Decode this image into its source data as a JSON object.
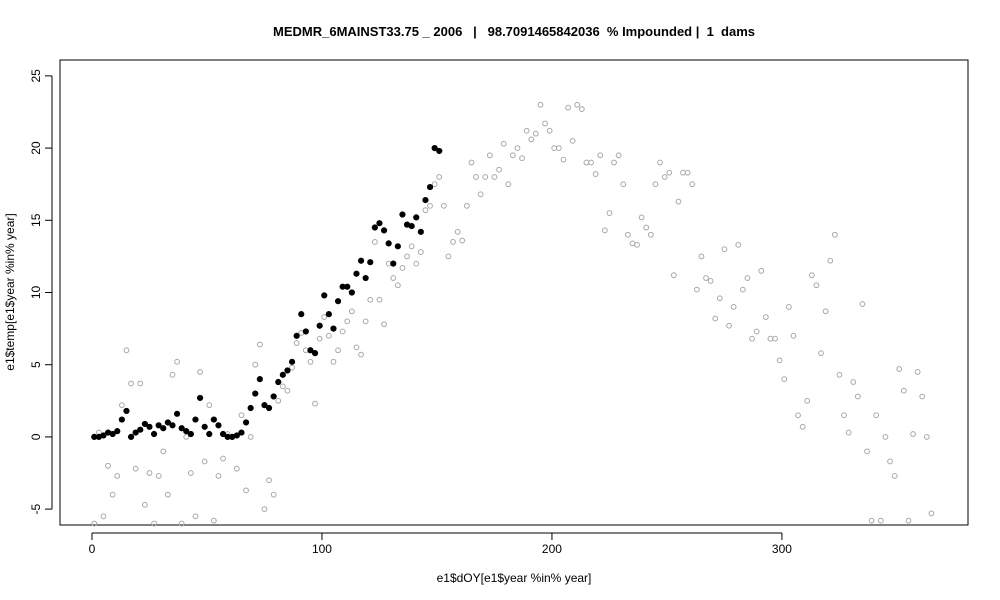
{
  "chart_data": {
    "type": "scatter",
    "title": "MEDMR_6MAINST33.75 _ 2006   |   98.7091465842036  % Impounded |  1  dams",
    "x_label": "e1$dOY[e1$year %in% year]",
    "y_label": "e1$temp[e1$year %in% year]",
    "xlim": [
      -13.9,
      380.9
    ],
    "ylim": [
      -6.1,
      26.1
    ],
    "xticks": [
      0,
      100,
      200,
      300
    ],
    "yticks": [
      -5,
      0,
      5,
      10,
      15,
      20,
      25
    ],
    "series": [
      {
        "color": "#a8a8a8",
        "filled": false,
        "x": [
          1,
          3,
          5,
          7,
          9,
          11,
          13,
          15,
          17,
          19,
          21,
          23,
          25,
          27,
          29,
          31,
          33,
          35,
          37,
          39,
          41,
          43,
          45,
          47,
          49,
          51,
          53,
          55,
          57,
          59,
          61,
          63,
          65,
          67,
          69,
          71,
          73,
          75,
          77,
          79,
          81,
          83,
          85,
          87,
          89,
          91,
          93,
          95,
          97,
          99,
          101,
          103,
          105,
          107,
          109,
          111,
          113,
          115,
          117,
          119,
          121,
          123,
          125,
          127,
          129,
          131,
          133,
          135,
          137,
          139,
          141,
          143,
          145,
          147,
          149,
          151,
          153,
          155,
          157,
          159,
          161,
          163,
          165,
          167,
          169,
          171,
          173,
          175,
          177,
          179,
          181,
          183,
          185,
          187,
          189,
          191,
          193,
          195,
          197,
          199,
          201,
          203,
          205,
          207,
          209,
          211,
          213,
          215,
          217,
          219,
          221,
          223,
          225,
          227,
          229,
          231,
          233,
          235,
          237,
          239,
          241,
          243,
          245,
          247,
          249,
          251,
          253,
          255,
          257,
          259,
          261,
          263,
          265,
          267,
          269,
          271,
          273,
          275,
          277,
          279,
          281,
          283,
          285,
          287,
          289,
          291,
          293,
          295,
          297,
          299,
          301,
          303,
          305,
          307,
          309,
          311,
          313,
          315,
          317,
          319,
          321,
          323,
          325,
          327,
          329,
          331,
          333,
          335,
          337,
          339,
          341,
          343,
          345,
          347,
          349,
          351,
          353,
          355,
          357,
          359,
          361,
          363,
          365
        ],
        "values": [
          -6,
          0.3,
          -5.5,
          -2,
          -4,
          -2.7,
          2.2,
          6,
          3.7,
          -2.2,
          3.7,
          -4.7,
          -2.5,
          -6,
          -2.7,
          -1,
          -4,
          4.3,
          5.2,
          -6,
          0,
          -2.5,
          -5.5,
          4.5,
          -1.7,
          2.2,
          -5.8,
          -2.7,
          -1.5,
          0.2,
          0,
          -2.2,
          1.5,
          -3.7,
          0,
          5,
          6.4,
          -5,
          -3,
          -4,
          2.5,
          3.5,
          3.2,
          4.8,
          6.5,
          7.2,
          6,
          5.2,
          2.3,
          6.8,
          8.3,
          7,
          5.2,
          6,
          7.3,
          8,
          8.7,
          6.2,
          5.7,
          8,
          9.5,
          13.5,
          9.5,
          7.8,
          12,
          11,
          10.5,
          11.7,
          12.5,
          13.2,
          12,
          12.8,
          15.7,
          16,
          17.5,
          18,
          16,
          12.5,
          13.5,
          14.2,
          13.6,
          16,
          19,
          18,
          16.8,
          18,
          19.5,
          18,
          18.5,
          20.3,
          17.5,
          19.5,
          20,
          19.3,
          21.2,
          20.6,
          21,
          23,
          21.7,
          21.2,
          20,
          20,
          19.2,
          22.8,
          20.5,
          23,
          22.7,
          19,
          19,
          18.2,
          19.5,
          14.3,
          15.5,
          19,
          19.5,
          17.5,
          14,
          13.4,
          13.3,
          15.2,
          14.5,
          14,
          17.5,
          19,
          18,
          18.3,
          11.2,
          16.3,
          18.3,
          18.3,
          17.5,
          10.2,
          12.5,
          11,
          10.8,
          8.2,
          9.6,
          13,
          7.7,
          9,
          13.3,
          10.2,
          11,
          6.8,
          7.3,
          11.5,
          8.3,
          6.8,
          6.8,
          5.3,
          4,
          9,
          7,
          1.5,
          0.7,
          2.5,
          11.2,
          10.5,
          5.8,
          8.7,
          12.2,
          14,
          4.3,
          1.5,
          0.3,
          3.8,
          2.8,
          9.2,
          -1,
          -5.8,
          1.5,
          -5.8,
          0,
          -1.7,
          -2.7,
          4.7,
          3.2,
          -5.8,
          0.2,
          4.5,
          2.8,
          0,
          -5.3
        ]
      },
      {
        "color": "#000000",
        "filled": true,
        "x": [
          1,
          3,
          5,
          7,
          9,
          11,
          13,
          15,
          17,
          19,
          21,
          23,
          25,
          27,
          29,
          31,
          33,
          35,
          37,
          39,
          41,
          43,
          45,
          47,
          49,
          51,
          53,
          55,
          57,
          59,
          61,
          63,
          65,
          67,
          69,
          71,
          73,
          75,
          77,
          79,
          81,
          83,
          85,
          87,
          89,
          91,
          93,
          95,
          97,
          99,
          101,
          103,
          105,
          107,
          109,
          111,
          113,
          115,
          117,
          119,
          121,
          123,
          125,
          127,
          129,
          131,
          133,
          135,
          137,
          139,
          141,
          143,
          145,
          147,
          149,
          151
        ],
        "values": [
          0,
          0,
          0.1,
          0.3,
          0.2,
          0.4,
          1.2,
          1.8,
          0,
          0.3,
          0.5,
          0.9,
          0.7,
          0.2,
          0.8,
          0.6,
          1,
          0.8,
          1.6,
          0.6,
          0.4,
          0.2,
          1.2,
          2.7,
          0.7,
          0.2,
          1.2,
          0.8,
          0.2,
          0,
          0,
          0.1,
          0.3,
          1,
          2,
          3,
          4,
          2.2,
          2,
          2.8,
          3.8,
          4.3,
          4.6,
          5.2,
          7,
          8.5,
          7.3,
          6,
          5.8,
          7.7,
          9.8,
          8.5,
          7.5,
          9.4,
          10.4,
          10.4,
          10,
          11.3,
          12.2,
          11,
          12.1,
          14.5,
          14.8,
          14.3,
          13.4,
          12,
          13.2,
          15.4,
          14.7,
          14.6,
          15.2,
          14.2,
          16.4,
          17.3,
          20,
          19.8
        ]
      }
    ]
  }
}
